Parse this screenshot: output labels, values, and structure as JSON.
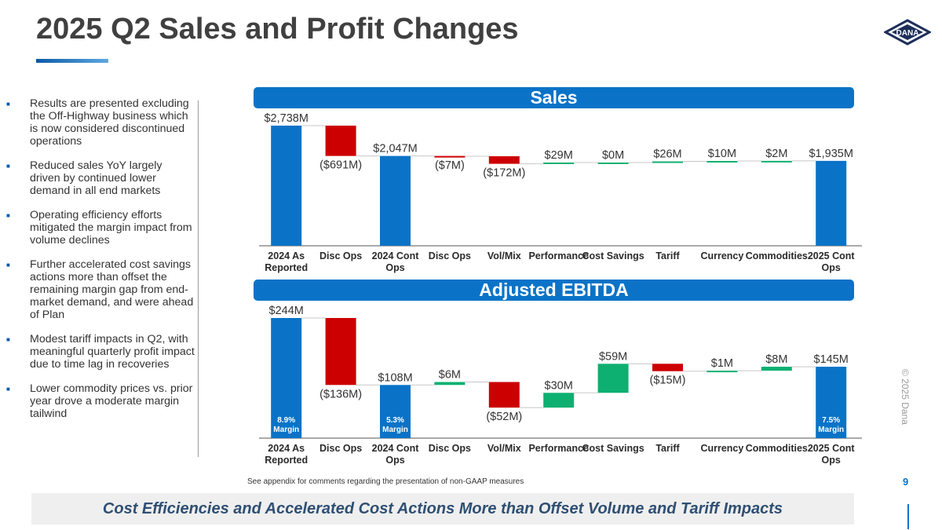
{
  "title": "2025 Q2 Sales and Profit Changes",
  "logo_text": "DANA",
  "bullets": [
    "Results are presented excluding the Off-Highway business which is now considered discontinued operations",
    "Reduced sales YoY largely driven by continued lower demand in all end markets",
    "Operating efficiency efforts mitigated the margin impact from volume declines",
    "Further accelerated cost savings actions more than offset the remaining margin gap from end-market demand, and were ahead of Plan",
    "Modest tariff impacts in Q2, with meaningful quarterly profit impact due to time lag in recoveries",
    "Lower commodity prices vs. prior year drove a moderate margin tailwind"
  ],
  "footnote": "See appendix for comments regarding the presentation of non-GAAP measures",
  "page_number": "9",
  "copyright": "© 2025 Dana",
  "bottom_banner": "Cost Efficiencies and Accelerated Cost Actions More than Offset Volume and Tariff Impacts",
  "colors": {
    "total": "#0a73c7",
    "negative": "#cc0000",
    "positive": "#0db070",
    "banner": "#0a73c7"
  },
  "chart_data": [
    {
      "type": "waterfall",
      "title": "Sales",
      "unit": "$M",
      "ylim": [
        0,
        2738
      ],
      "categories": [
        "2024 As Reported",
        "Disc Ops",
        "2024 Cont Ops",
        "Disc Ops",
        "Vol/Mix",
        "Performance",
        "Cost Savings",
        "Tariff",
        "Currency",
        "Commodities",
        "2025 Cont Ops"
      ],
      "values": [
        2738,
        -691,
        2047,
        -7,
        -172,
        29,
        0,
        26,
        10,
        2,
        1935
      ],
      "kinds": [
        "total",
        "delta",
        "total",
        "delta",
        "delta",
        "delta",
        "delta",
        "delta",
        "delta",
        "delta",
        "total"
      ],
      "value_labels": [
        "$2,738M",
        "($691M)",
        "$2,047M",
        "($7M)",
        "($172M)",
        "$29M",
        "$0M",
        "$26M",
        "$10M",
        "$2M",
        "$1,935M"
      ],
      "bar_inner_labels": [
        "",
        "",
        "",
        "",
        "",
        "",
        "",
        "",
        "",
        "",
        ""
      ]
    },
    {
      "type": "waterfall",
      "title": "Adjusted EBITDA",
      "unit": "$M",
      "ylim": [
        0,
        244
      ],
      "categories": [
        "2024 As Reported",
        "Disc Ops",
        "2024 Cont Ops",
        "Disc Ops",
        "Vol/Mix",
        "Performance",
        "Cost Savings",
        "Tariff",
        "Currency",
        "Commodities",
        "2025 Cont Ops"
      ],
      "values": [
        244,
        -136,
        108,
        6,
        -52,
        30,
        59,
        -15,
        1,
        8,
        145
      ],
      "kinds": [
        "total",
        "delta",
        "total",
        "delta",
        "delta",
        "delta",
        "delta",
        "delta",
        "delta",
        "delta",
        "total"
      ],
      "value_labels": [
        "$244M",
        "($136M)",
        "$108M",
        "$6M",
        "($52M)",
        "$30M",
        "$59M",
        "($15M)",
        "$1M",
        "$8M",
        "$145M"
      ],
      "bar_inner_labels": [
        "8.9% Margin",
        "",
        "5.3% Margin",
        "",
        "",
        "",
        "",
        "",
        "",
        "",
        "7.5% Margin"
      ]
    }
  ]
}
